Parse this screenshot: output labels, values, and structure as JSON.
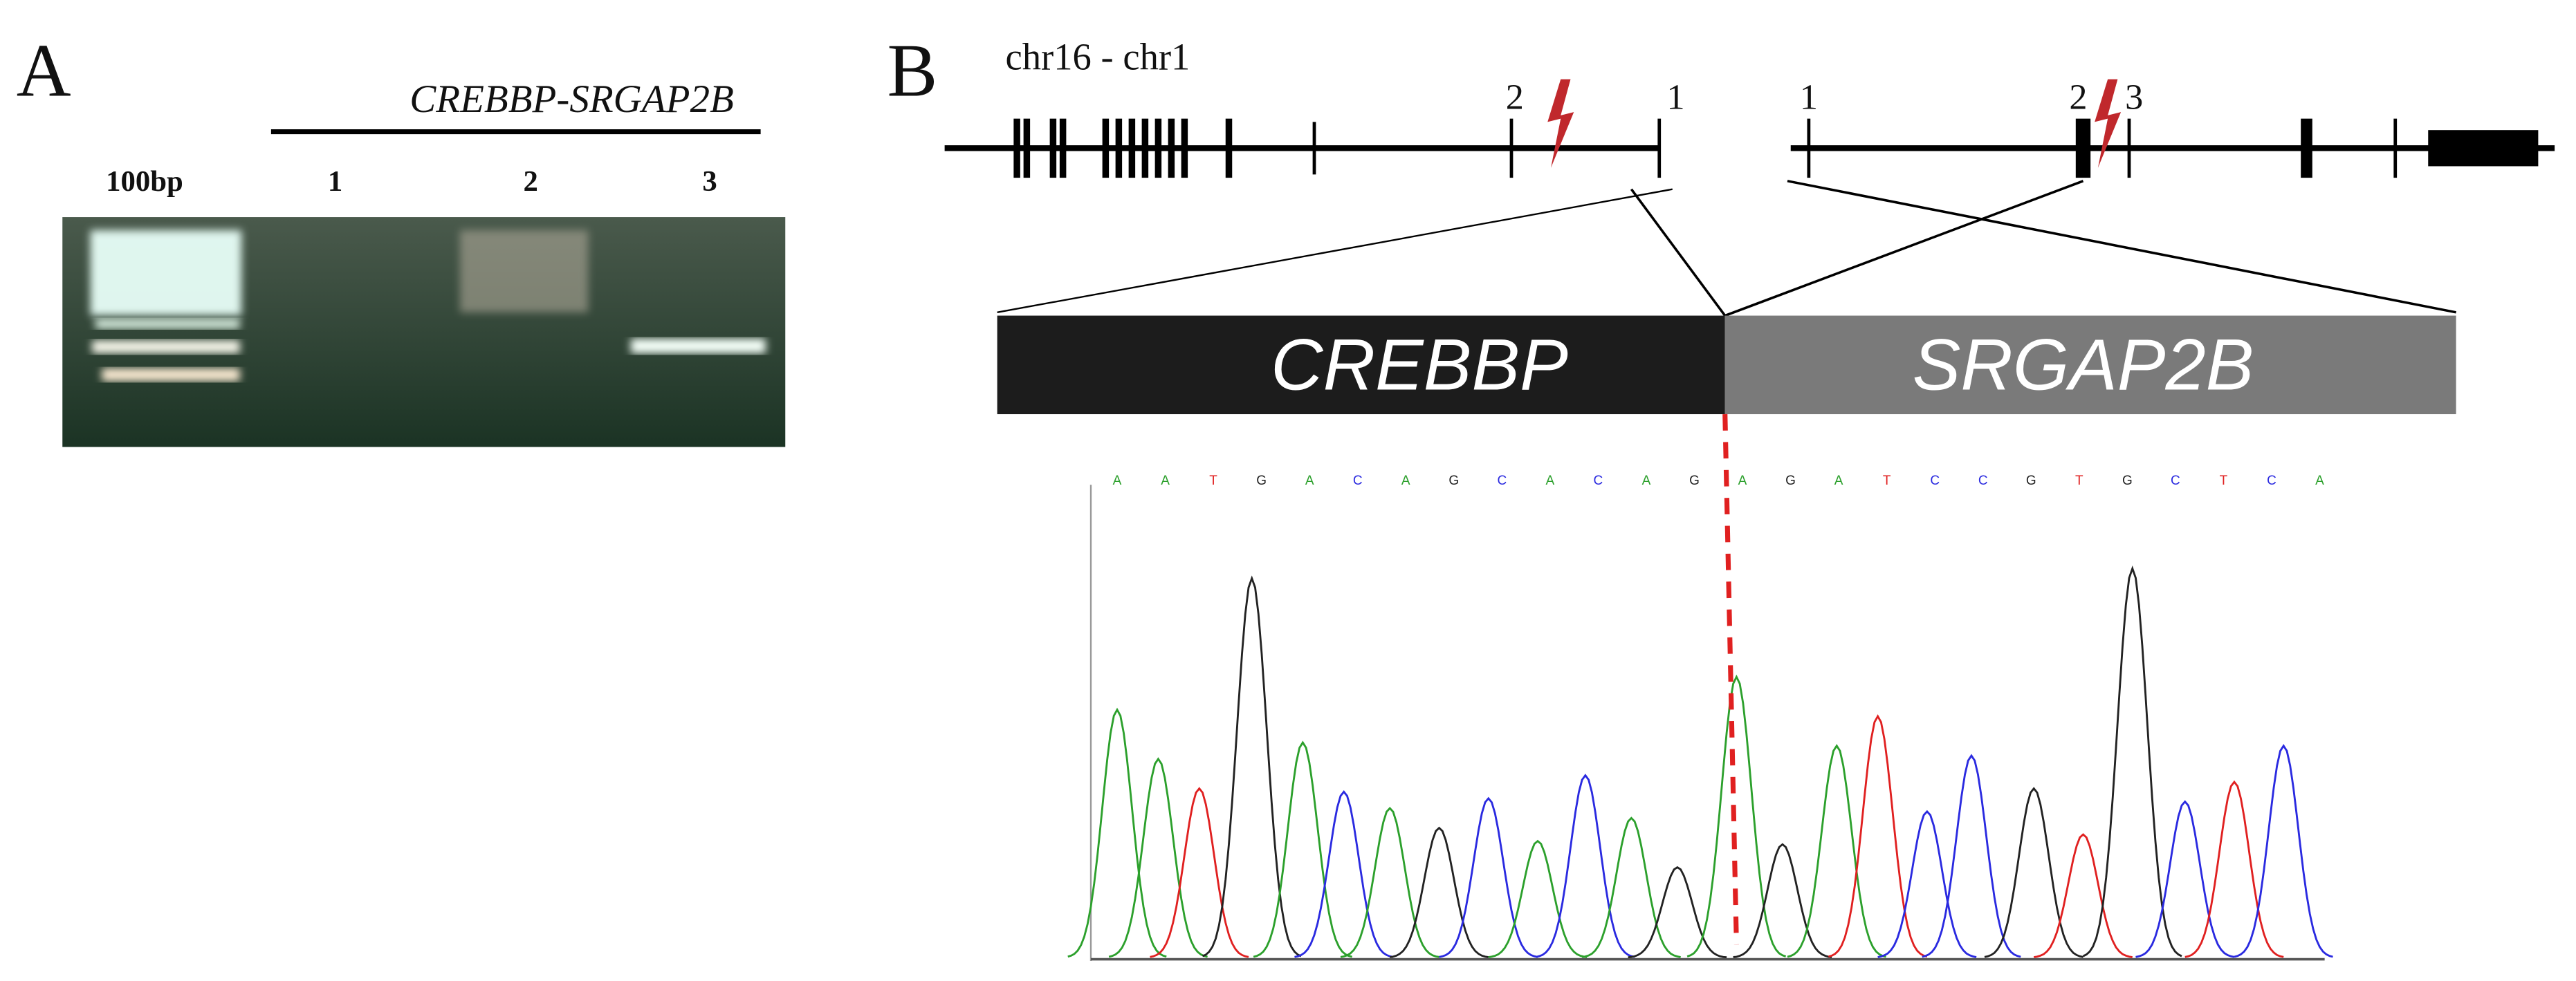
{
  "panel_a": {
    "label": "A",
    "title": "CREBBP-SRGAP2B",
    "lanes": [
      "100bp",
      "1",
      "2",
      "3"
    ]
  },
  "panel_b": {
    "label": "B",
    "locus": "chr16 - chr1",
    "exon_labels_left": [
      "2",
      "1"
    ],
    "exon_labels_right": [
      "1",
      "2",
      "3"
    ],
    "fusion": [
      "CREBBP",
      "SRGAP2B"
    ],
    "sequence": [
      "A",
      "A",
      "T",
      "G",
      "A",
      "C",
      "A",
      "G",
      "C",
      "A",
      "C",
      "A",
      "G",
      "A",
      "G",
      "A",
      "T",
      "C",
      "C",
      "G",
      "T",
      "G",
      "C",
      "T",
      "C",
      "A"
    ],
    "base_colors": {
      "A": "#2ca02c",
      "C": "#2a2ae0",
      "G": "#222222",
      "T": "#e02020"
    }
  }
}
